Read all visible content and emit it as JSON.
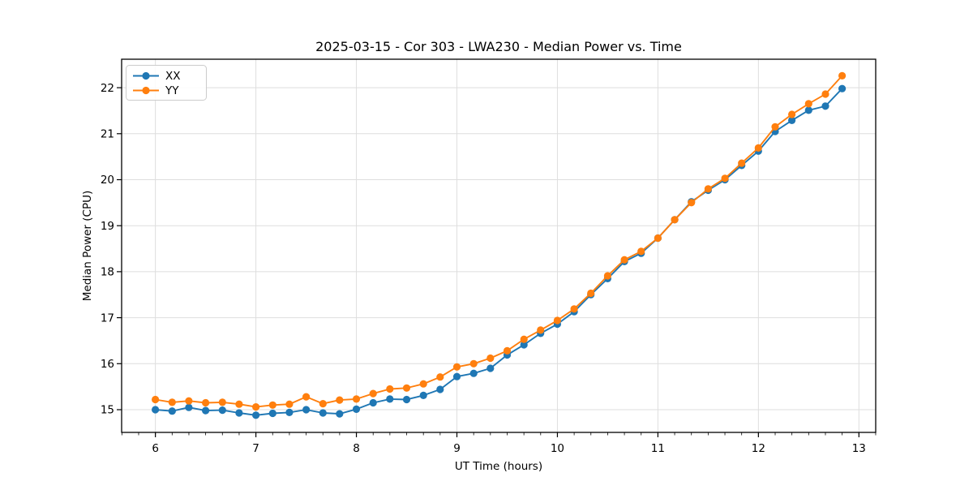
{
  "chart_data": {
    "type": "line",
    "title": "2025-03-15 - Cor 303 - LWA230 - Median Power vs. Time",
    "xlabel": "UT Time (hours)",
    "ylabel": "Median Power (CPU)",
    "xlim": [
      5.664,
      13.167
    ],
    "ylim": [
      14.506,
      22.619
    ],
    "xticks": [
      6,
      7,
      8,
      9,
      10,
      11,
      12,
      13
    ],
    "yticks": [
      15,
      16,
      17,
      18,
      19,
      20,
      21,
      22
    ],
    "x_minor_step": 0.166667,
    "grid": true,
    "legend_position": "upper-left",
    "x": [
      6.0,
      6.167,
      6.333,
      6.5,
      6.667,
      6.833,
      7.0,
      7.167,
      7.333,
      7.5,
      7.667,
      7.833,
      8.0,
      8.167,
      8.333,
      8.5,
      8.667,
      8.833,
      9.0,
      9.167,
      9.333,
      9.5,
      9.667,
      9.833,
      10.0,
      10.167,
      10.333,
      10.5,
      10.667,
      10.833,
      11.0,
      11.167,
      11.333,
      11.5,
      11.667,
      11.833,
      12.0,
      12.167,
      12.333,
      12.5,
      12.667,
      12.833
    ],
    "series": [
      {
        "name": "XX",
        "color": "#1f77b4",
        "values": [
          15.0,
          14.97,
          15.05,
          14.98,
          14.99,
          14.93,
          14.88,
          14.92,
          14.94,
          15.0,
          14.93,
          14.91,
          15.01,
          15.15,
          15.23,
          15.22,
          15.31,
          15.44,
          15.72,
          15.79,
          15.9,
          16.19,
          16.41,
          16.66,
          16.86,
          17.13,
          17.5,
          17.85,
          18.22,
          18.4,
          18.73,
          19.13,
          19.52,
          19.77,
          20.0,
          20.31,
          20.62,
          21.05,
          21.29,
          21.51,
          21.6,
          21.98
        ]
      },
      {
        "name": "YY",
        "color": "#ff7f0e",
        "values": [
          15.22,
          15.16,
          15.19,
          15.15,
          15.16,
          15.12,
          15.06,
          15.1,
          15.12,
          15.28,
          15.13,
          15.21,
          15.23,
          15.35,
          15.45,
          15.47,
          15.56,
          15.71,
          15.93,
          16.0,
          16.12,
          16.28,
          16.53,
          16.73,
          16.94,
          17.19,
          17.53,
          17.91,
          18.26,
          18.44,
          18.73,
          19.13,
          19.5,
          19.8,
          20.03,
          20.36,
          20.69,
          21.15,
          21.42,
          21.65,
          21.86,
          22.26
        ]
      }
    ]
  }
}
